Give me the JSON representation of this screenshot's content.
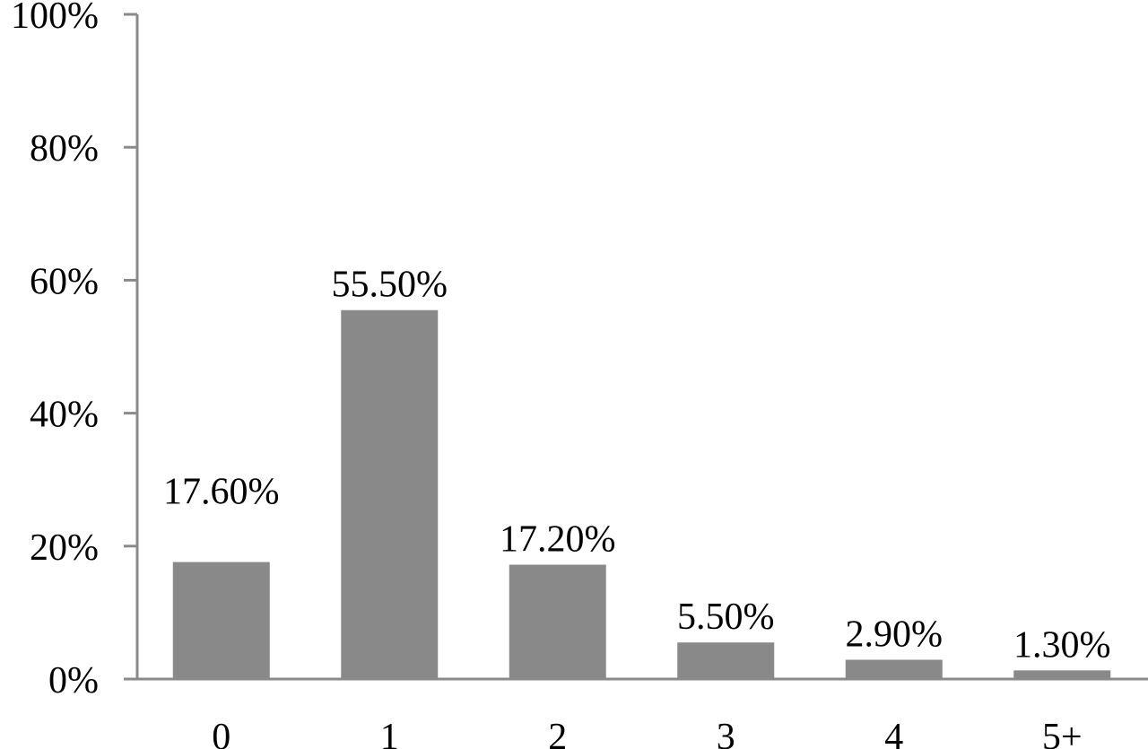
{
  "chart_data": {
    "type": "bar",
    "title": "",
    "xlabel": "",
    "ylabel": "",
    "categories": [
      "0",
      "1",
      "2",
      "3",
      "4",
      "5+"
    ],
    "values": [
      17.6,
      55.5,
      17.2,
      5.5,
      2.9,
      1.3
    ],
    "data_labels": [
      "17.60%",
      "55.50%",
      "17.20%",
      "5.50%",
      "2.90%",
      "1.30%"
    ],
    "ylim": [
      0,
      100
    ],
    "yticks": [
      0,
      20,
      40,
      60,
      80,
      100
    ],
    "ytick_labels": [
      "0%",
      "20%",
      "40%",
      "60%",
      "80%",
      "100%"
    ],
    "grid": false,
    "legend": "none",
    "bar_color": "#898989"
  }
}
